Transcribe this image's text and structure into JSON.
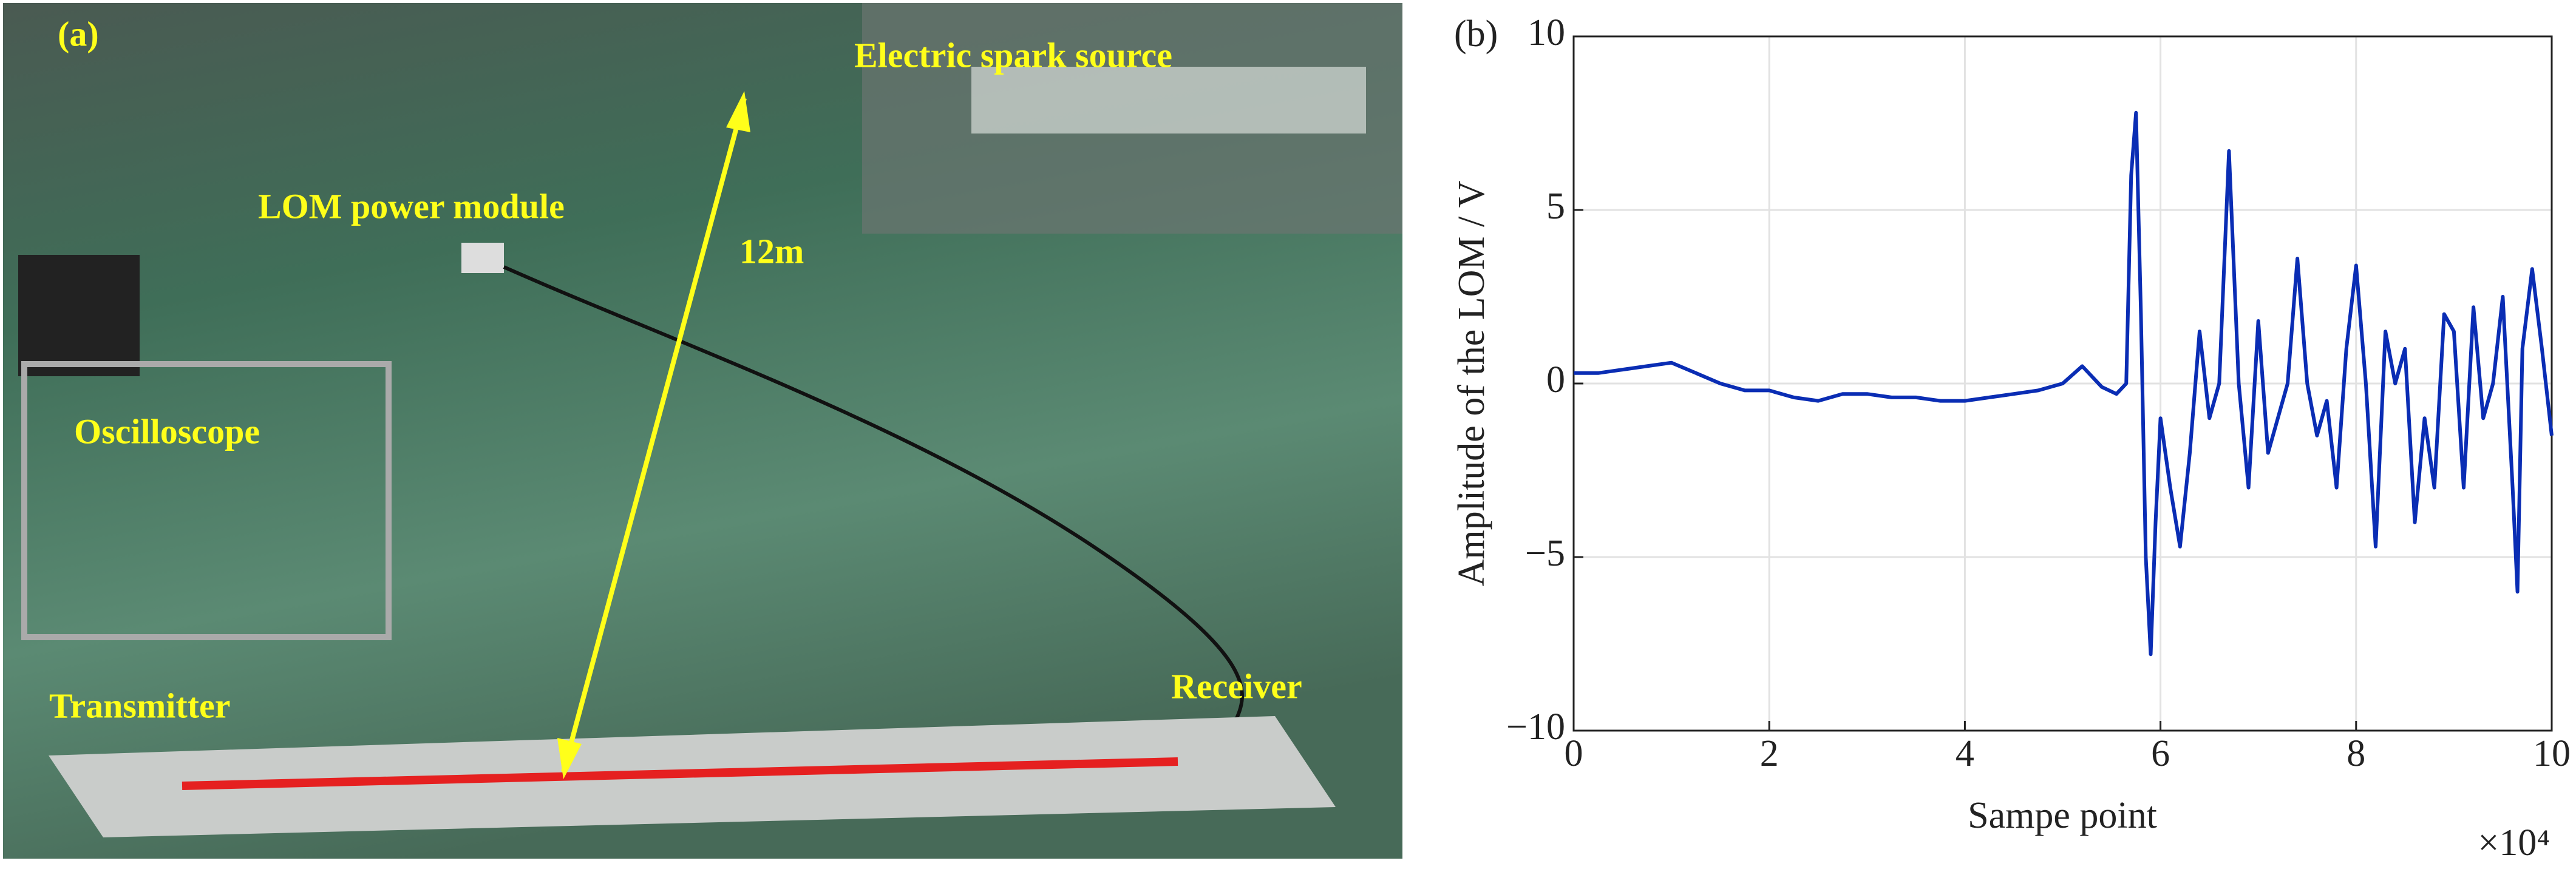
{
  "photo": {
    "panel_label": "(a)",
    "labels": [
      "Electric spark source",
      "LOM power module",
      "12m",
      "Oscilloscope",
      "Transmitter",
      "Receiver"
    ]
  },
  "chart_data": {
    "type": "line",
    "panel_label": "(b)",
    "x_label": "Sampe point",
    "y_label": "Amplitude of the LOM / V",
    "x_multiplier": "×10⁴",
    "x": [
      0,
      2500,
      5000,
      7500,
      10000,
      12500,
      15000,
      17500,
      20000,
      22500,
      25000,
      27500,
      30000,
      32500,
      35000,
      37500,
      40000,
      42500,
      45000,
      47500,
      50000,
      52000,
      54000,
      55500,
      56500,
      57000,
      57500,
      58000,
      58500,
      59000,
      59500,
      60000,
      61000,
      62000,
      63000,
      64000,
      65000,
      66000,
      67000,
      68000,
      69000,
      70000,
      71000,
      72000,
      73000,
      74000,
      75000,
      76000,
      77000,
      78000,
      79000,
      80000,
      81000,
      82000,
      83000,
      84000,
      85000,
      86000,
      87000,
      88000,
      89000,
      90000,
      91000,
      92000,
      93000,
      94000,
      95000,
      96000,
      96500,
      97000,
      98000,
      99000,
      100000
    ],
    "series": [
      {
        "name": "LOM amplitude",
        "color": "#0a2db4",
        "values": [
          0.3,
          0.3,
          0.4,
          0.5,
          0.6,
          0.3,
          0.0,
          -0.2,
          -0.2,
          -0.4,
          -0.5,
          -0.3,
          -0.3,
          -0.4,
          -0.4,
          -0.5,
          -0.5,
          -0.4,
          -0.3,
          -0.2,
          0.0,
          0.5,
          -0.1,
          -0.3,
          0.0,
          6.0,
          7.8,
          2.0,
          -5.0,
          -7.8,
          -4.0,
          -1.0,
          -3.0,
          -4.7,
          -2.0,
          1.5,
          -1.0,
          0.0,
          6.7,
          0.0,
          -3.0,
          1.8,
          -2.0,
          -1.0,
          0.0,
          3.6,
          0.0,
          -1.5,
          -0.5,
          -3.0,
          1.0,
          3.4,
          0.0,
          -4.7,
          1.5,
          0.0,
          1.0,
          -4.0,
          -1.0,
          -3.0,
          2.0,
          1.5,
          -3.0,
          2.2,
          -1.0,
          0.0,
          2.5,
          -3.0,
          -6.0,
          1.0,
          3.3,
          1.0,
          -1.5
        ]
      }
    ],
    "xlim": [
      0,
      100000
    ],
    "ylim": [
      -10,
      10
    ],
    "xticks": [
      0,
      {
        "value": 20000,
        "label": "2"
      },
      {
        "value": 40000,
        "label": "4"
      },
      {
        "value": 60000,
        "label": "6"
      },
      {
        "value": 80000,
        "label": "8"
      },
      {
        "value": 100000,
        "label": "10"
      }
    ],
    "yticks": [
      {
        "value": -10,
        "label": "−10"
      },
      {
        "value": -5,
        "label": "−5"
      },
      0,
      5,
      10
    ],
    "grid": true
  }
}
